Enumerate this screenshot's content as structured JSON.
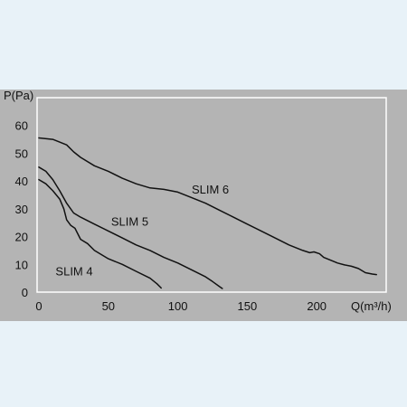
{
  "chart_data": {
    "type": "line",
    "xlabel": "Q(m³/h)",
    "ylabel": "P(Pa)",
    "xlim": [
      0,
      250
    ],
    "ylim": [
      0,
      70
    ],
    "x_ticks": [
      0,
      50,
      100,
      150,
      200
    ],
    "y_ticks": [
      0,
      10,
      20,
      30,
      40,
      50,
      60
    ],
    "grid": false,
    "background_color": "#b4b4b4",
    "frame_color": "#ffffff",
    "line_color": "#111111",
    "page_color": "#e8f2f8",
    "series": [
      {
        "name": "SLIM 4",
        "label_pos": [
          12,
          6
        ],
        "x": [
          0,
          5,
          10,
          15,
          18,
          20,
          23,
          26,
          28,
          30,
          35,
          40,
          50,
          60,
          70,
          80,
          85,
          88
        ],
        "y": [
          40.5,
          39,
          36.5,
          33.5,
          30,
          26,
          24,
          23,
          21,
          19,
          17.5,
          15,
          12,
          10,
          7.5,
          5,
          3,
          1.5
        ]
      },
      {
        "name": "SLIM 5",
        "label_pos": [
          52,
          24
        ],
        "x": [
          0,
          5,
          10,
          15,
          20,
          25,
          30,
          40,
          50,
          60,
          70,
          80,
          90,
          100,
          110,
          120,
          125,
          130,
          132
        ],
        "y": [
          45,
          43.5,
          40.5,
          36.5,
          32,
          28.5,
          27,
          24.5,
          22,
          19.5,
          17,
          15,
          12.5,
          10.5,
          8,
          5.5,
          3.8,
          2,
          1.3
        ]
      },
      {
        "name": "SLIM 6",
        "label_pos": [
          110,
          35.5
        ],
        "x": [
          0,
          10,
          20,
          25,
          30,
          40,
          50,
          60,
          70,
          80,
          90,
          100,
          110,
          120,
          130,
          140,
          150,
          160,
          170,
          180,
          190,
          195,
          198,
          202,
          205,
          210,
          215,
          220,
          225,
          230,
          235,
          240,
          243
        ],
        "y": [
          55.5,
          55,
          53,
          50.5,
          48.5,
          45.5,
          43.5,
          41,
          39,
          37.5,
          37,
          36,
          34,
          32,
          29.5,
          27,
          24.5,
          22,
          19.5,
          17,
          15,
          14.2,
          14.5,
          13.8,
          12.5,
          11.5,
          10.5,
          9.8,
          9.3,
          8.5,
          7,
          6.5,
          6.3
        ]
      }
    ]
  }
}
